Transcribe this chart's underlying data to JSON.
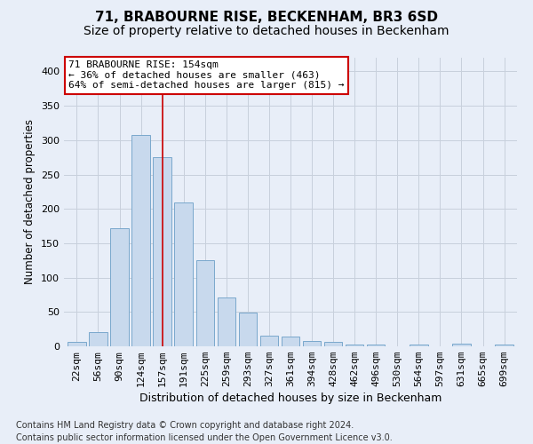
{
  "title": "71, BRABOURNE RISE, BECKENHAM, BR3 6SD",
  "subtitle": "Size of property relative to detached houses in Beckenham",
  "xlabel": "Distribution of detached houses by size in Beckenham",
  "ylabel": "Number of detached properties",
  "categories": [
    "22sqm",
    "56sqm",
    "90sqm",
    "124sqm",
    "157sqm",
    "191sqm",
    "225sqm",
    "259sqm",
    "293sqm",
    "327sqm",
    "361sqm",
    "394sqm",
    "428sqm",
    "462sqm",
    "496sqm",
    "530sqm",
    "564sqm",
    "597sqm",
    "631sqm",
    "665sqm",
    "699sqm"
  ],
  "values": [
    7,
    21,
    172,
    308,
    275,
    210,
    126,
    71,
    49,
    15,
    14,
    8,
    7,
    3,
    2,
    0,
    3,
    0,
    4,
    0,
    3
  ],
  "bar_color": "#c8d9ed",
  "bar_edge_color": "#7aa8cc",
  "vline_x": 4,
  "vline_color": "#cc0000",
  "annotation_text": "71 BRABOURNE RISE: 154sqm\n← 36% of detached houses are smaller (463)\n64% of semi-detached houses are larger (815) →",
  "annotation_box_color": "#ffffff",
  "annotation_box_edge_color": "#cc0000",
  "ylim": [
    0,
    420
  ],
  "yticks": [
    0,
    50,
    100,
    150,
    200,
    250,
    300,
    350,
    400
  ],
  "grid_color": "#c8d0dc",
  "bg_color": "#e8eef8",
  "fig_color": "#e8eef8",
  "footer": "Contains HM Land Registry data © Crown copyright and database right 2024.\nContains public sector information licensed under the Open Government Licence v3.0.",
  "title_fontsize": 11,
  "subtitle_fontsize": 10,
  "xlabel_fontsize": 9,
  "ylabel_fontsize": 8.5,
  "tick_fontsize": 8,
  "footer_fontsize": 7
}
